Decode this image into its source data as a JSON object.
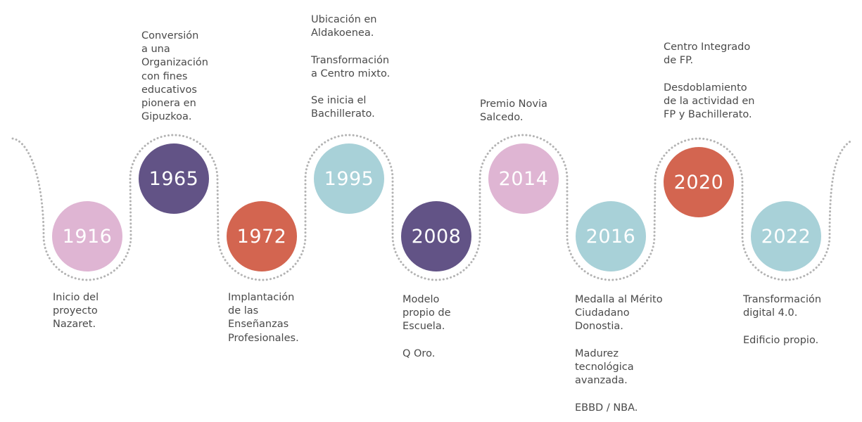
{
  "colors": {
    "pink": "#dfb5d3",
    "purple": "#625386",
    "orange": "#d36550",
    "lightblue": "#a8d1d8",
    "dots": "#b3b3b3",
    "text": "#4a4a4a"
  },
  "milestones": [
    {
      "year": "1916",
      "color": "#dfb5d3",
      "items": [
        "Inicio del\nproyecto\nNazaret."
      ]
    },
    {
      "year": "1965",
      "color": "#625386",
      "items": [
        "Conversión\na una\nOrganización\ncon fines\neducativos\npionera en\nGipuzkoa."
      ]
    },
    {
      "year": "1972",
      "color": "#d36550",
      "items": [
        "Implantación\nde las\nEnseñanzas\nProfesionales."
      ]
    },
    {
      "year": "1995",
      "color": "#a8d1d8",
      "items": [
        "Ubicación en\nAldakoenea.",
        "Transformación\na Centro mixto.",
        "Se inicia el\nBachillerato."
      ]
    },
    {
      "year": "2008",
      "color": "#625386",
      "items": [
        "Modelo\npropio de\nEscuela.",
        "Q Oro."
      ]
    },
    {
      "year": "2014",
      "color": "#dfb5d3",
      "items": [
        "Premio Novia\nSalcedo."
      ]
    },
    {
      "year": "2016",
      "color": "#a8d1d8",
      "items": [
        "Medalla al Mérito\nCiudadano\nDonostia.",
        "Madurez\ntecnológica\navanzada.",
        "EBBD / NBA."
      ]
    },
    {
      "year": "2020",
      "color": "#d36550",
      "items": [
        "Centro Integrado\nde FP.",
        "Desdoblamiento\nde la actividad en\nFP y Bachillerato."
      ]
    },
    {
      "year": "2022",
      "color": "#a8d1d8",
      "items": [
        "Transformación\ndigital 4.0.",
        "Edificio propio."
      ]
    }
  ]
}
